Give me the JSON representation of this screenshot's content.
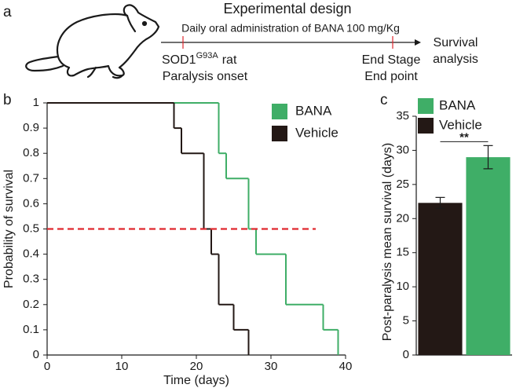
{
  "panel_labels": [
    "a",
    "b",
    "c"
  ],
  "design": {
    "title": "Experimental design",
    "treatment": "Daily oral administration of BANA 100 mg/Kg",
    "start": {
      "gene": "SOD1",
      "mutation": "G93A",
      "animal": "rat",
      "line2": "Paralysis onset"
    },
    "end": {
      "line1": "End Stage",
      "line2": "End point"
    },
    "outcome": {
      "line1": "Survival",
      "line2": "analysis"
    }
  },
  "chart_data": [
    {
      "type": "step",
      "xlabel": "Time (days)",
      "ylabel": "Probability of survival",
      "xlim": [
        0,
        40
      ],
      "ylim": [
        0,
        1
      ],
      "xticks": [
        0,
        10,
        20,
        30,
        40
      ],
      "yticks": [
        0,
        0.1,
        0.2,
        0.3,
        0.4,
        0.5,
        0.6,
        0.7,
        0.8,
        0.9,
        1
      ],
      "series": [
        {
          "name": "BANA",
          "color": "#3fae67",
          "x": [
            0,
            23,
            24,
            27,
            28,
            32,
            37,
            39
          ],
          "values": [
            1,
            0.8,
            0.7,
            0.5,
            0.4,
            0.2,
            0.1,
            0
          ]
        },
        {
          "name": "Vehicle",
          "color": "#231815",
          "x": [
            0,
            17,
            18,
            21,
            22,
            23,
            25,
            27
          ],
          "values": [
            1,
            0.9,
            0.8,
            0.5,
            0.4,
            0.2,
            0.1,
            0
          ]
        }
      ],
      "reference_line": {
        "y": 0.5,
        "x": [
          0,
          36
        ],
        "color": "#e0282e"
      }
    },
    {
      "type": "bar",
      "ylabel": "Post-paralysis mean survival (days)",
      "ylim": [
        0,
        35
      ],
      "yticks": [
        0,
        5,
        10,
        15,
        20,
        25,
        30,
        35
      ],
      "series": [
        {
          "name": "BANA",
          "color": "#3fae67",
          "values": [
            29
          ],
          "errors": [
            1.7
          ]
        },
        {
          "name": "Vehicle",
          "color": "#231815",
          "values": [
            22.3
          ],
          "errors": [
            0.8
          ]
        }
      ],
      "significance": "**"
    }
  ]
}
